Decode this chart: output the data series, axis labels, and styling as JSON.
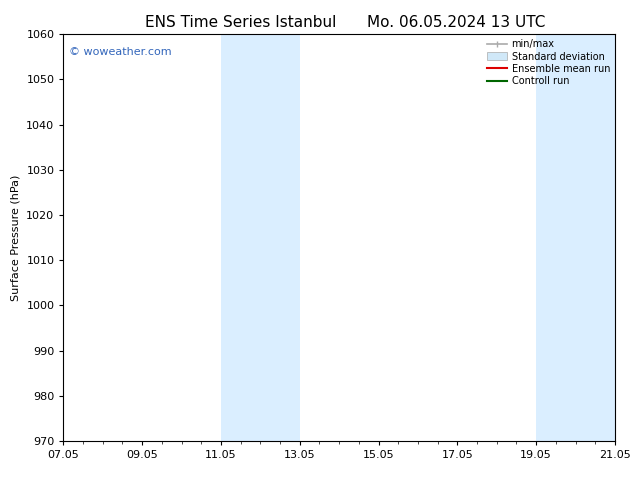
{
  "title_left": "ENS Time Series Istanbul",
  "title_right": "Mo. 06.05.2024 13 UTC",
  "ylabel": "Surface Pressure (hPa)",
  "ylim": [
    970,
    1060
  ],
  "yticks": [
    970,
    980,
    990,
    1000,
    1010,
    1020,
    1030,
    1040,
    1050,
    1060
  ],
  "xlim_min": 0.0,
  "xlim_max": 14.0,
  "xtick_labels": [
    "07.05",
    "09.05",
    "11.05",
    "13.05",
    "15.05",
    "17.05",
    "19.05",
    "21.05"
  ],
  "xtick_positions": [
    0,
    2,
    4,
    6,
    8,
    10,
    12,
    14
  ],
  "background_color": "#ffffff",
  "plot_bg_color": "#ffffff",
  "shaded_regions": [
    {
      "xmin": 4.0,
      "xmax": 5.0,
      "color": "#daeeff"
    },
    {
      "xmin": 5.0,
      "xmax": 6.0,
      "color": "#daeeff"
    },
    {
      "xmin": 12.0,
      "xmax": 13.0,
      "color": "#daeeff"
    },
    {
      "xmin": 13.0,
      "xmax": 14.0,
      "color": "#daeeff"
    }
  ],
  "watermark_text": "© woweather.com",
  "watermark_color": "#3366bb",
  "legend_labels": [
    "min/max",
    "Standard deviation",
    "Ensemble mean run",
    "Controll run"
  ],
  "legend_colors_line": [
    "#aaaaaa",
    "#ccddee",
    "#dd0000",
    "#006600"
  ],
  "title_fontsize": 11,
  "axis_label_fontsize": 8,
  "tick_fontsize": 8,
  "watermark_fontsize": 8,
  "legend_fontsize": 7
}
